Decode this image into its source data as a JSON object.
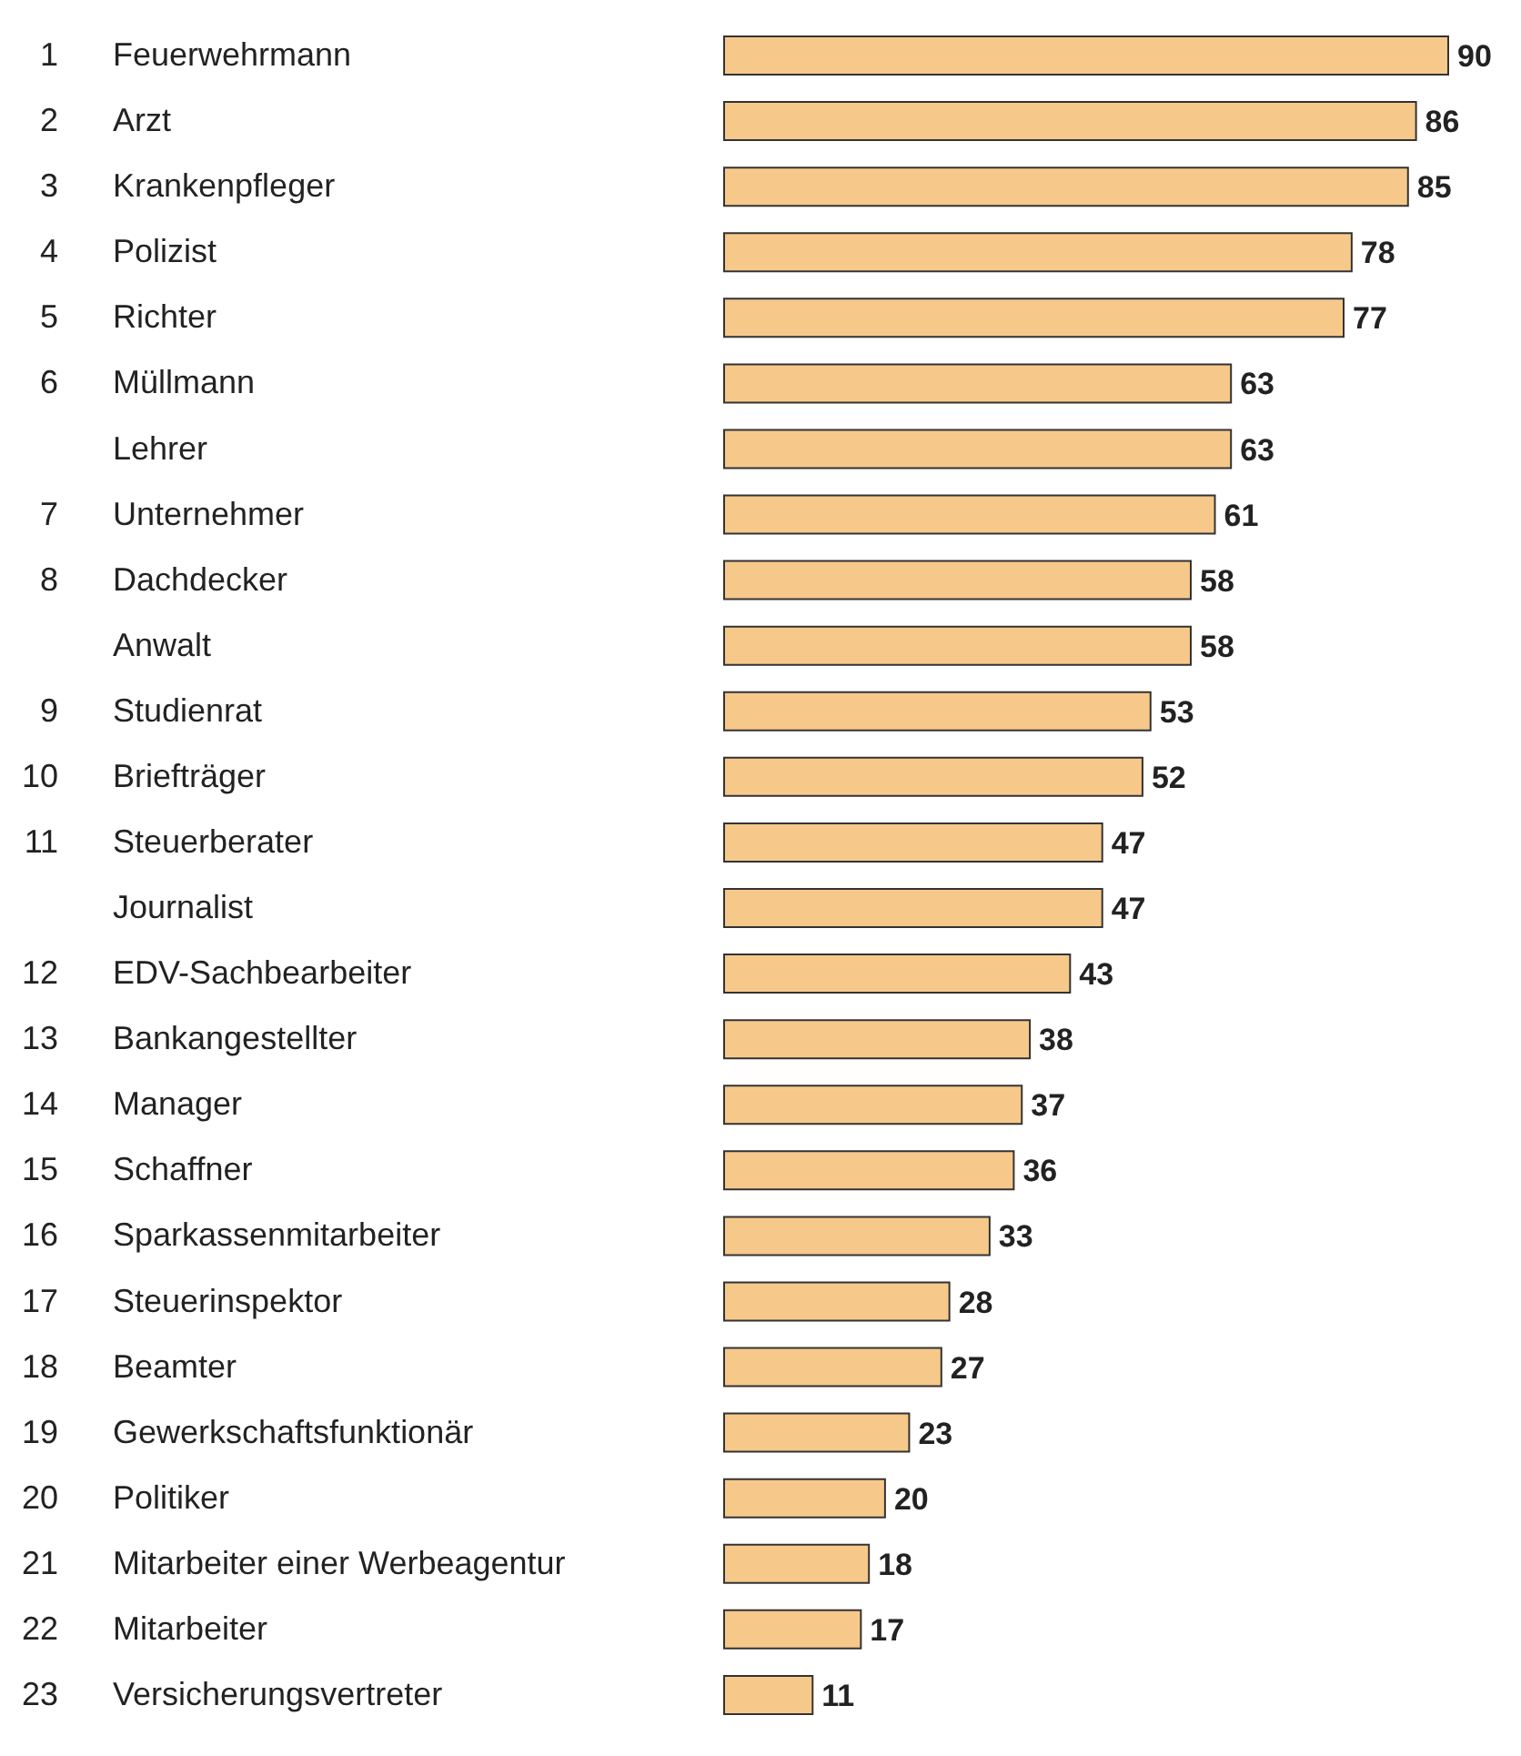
{
  "chart_data": {
    "type": "bar",
    "orientation": "horizontal",
    "data_labels": true,
    "color": "#f6c98b",
    "categories": [
      "1 Feuerwehrmann",
      "2 Arzt",
      "3 Krankenpfleger",
      "4 Polizist",
      "5 Richter",
      "6 Müllmann",
      "Lehrer",
      "7 Unternehmer",
      "8 Dachdecker",
      "Anwalt",
      "9 Studienrat",
      "10 Briefträger",
      "11 Steuerberater",
      "Journalist",
      "12 EDV-Sachbearbeiter",
      "13 Bankangestellter",
      "14 Manager",
      "15 Schaffner",
      "16 Sparkassenmitarbeiter",
      "17 Steuerinspektor",
      "18 Beamter",
      "19 Gewerkschaftsfunktionär",
      "20 Politiker",
      "21 Mitarbeiter einer Werbeagentur",
      "22 Mitarbeiter",
      "23 Versicherungsvertreter"
    ],
    "values": [
      90,
      86,
      85,
      78,
      77,
      63,
      63,
      61,
      58,
      58,
      53,
      52,
      47,
      47,
      43,
      38,
      37,
      36,
      33,
      28,
      27,
      23,
      20,
      18,
      17,
      11
    ]
  }
}
